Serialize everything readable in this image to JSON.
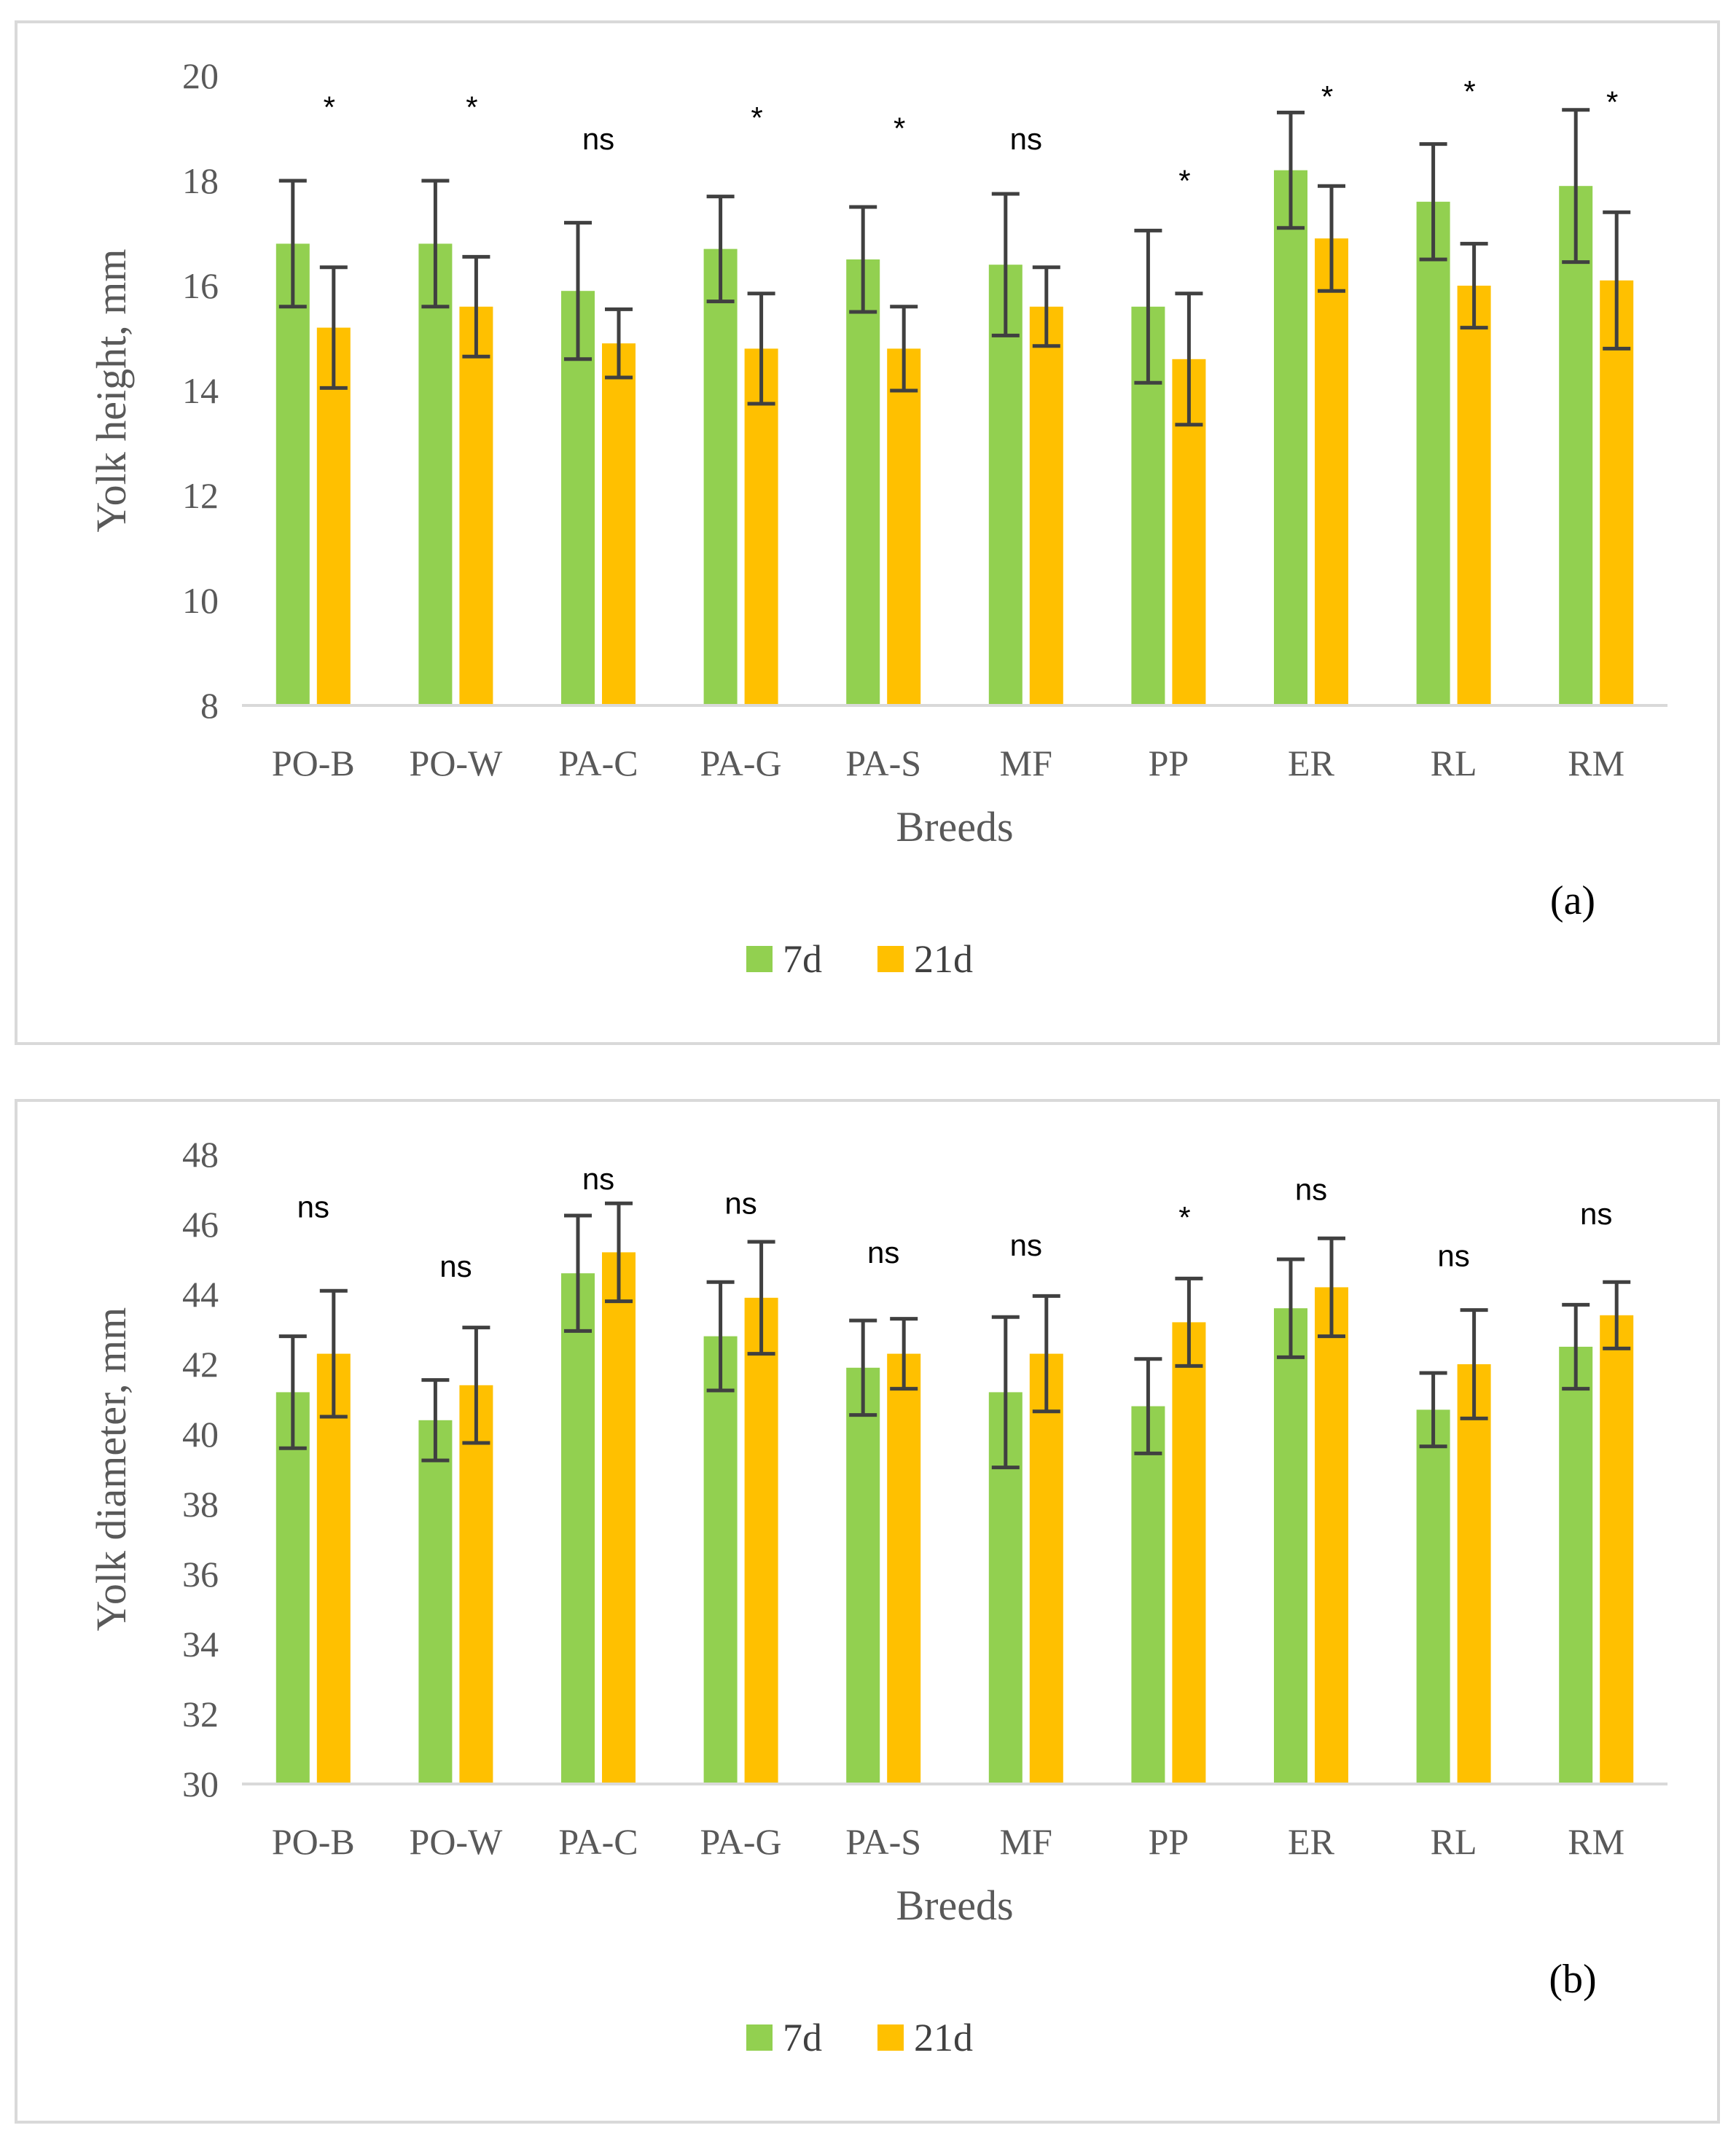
{
  "chart_data": [
    {
      "type": "bar",
      "panel_label": "(a)",
      "xlabel": "Breeds",
      "ylabel": "Yolk height, mm",
      "ylim": [
        8,
        20
      ],
      "yticks": [
        8,
        10,
        12,
        14,
        16,
        18,
        20
      ],
      "categories": [
        "PO-B",
        "PO-W",
        "PA-C",
        "PA-G",
        "PA-S",
        "MF",
        "PP",
        "ER",
        "RL",
        "RM"
      ],
      "series": [
        {
          "name": "7d",
          "color": "#92d050",
          "values": [
            16.8,
            16.8,
            15.9,
            16.7,
            16.5,
            16.4,
            15.6,
            18.2,
            17.6,
            17.9
          ],
          "errors": [
            1.2,
            1.2,
            1.3,
            1.0,
            1.0,
            1.35,
            1.45,
            1.1,
            1.1,
            1.45
          ]
        },
        {
          "name": "21d",
          "color": "#ffc000",
          "values": [
            15.2,
            15.6,
            14.9,
            14.8,
            14.8,
            15.6,
            14.6,
            16.9,
            16.0,
            16.1
          ],
          "errors": [
            1.15,
            0.95,
            0.65,
            1.05,
            0.8,
            0.75,
            1.25,
            1.0,
            0.8,
            1.3
          ]
        }
      ],
      "annotations": [
        "*",
        "*",
        "ns",
        "*",
        "*",
        "ns",
        "*",
        "*",
        "*",
        "*"
      ],
      "annotation_values": [
        19.2,
        19.2,
        18.6,
        19.0,
        18.8,
        18.6,
        17.8,
        19.4,
        19.5,
        19.3
      ]
    },
    {
      "type": "bar",
      "panel_label": "(b)",
      "xlabel": "Breeds",
      "ylabel": "Yolk diameter, mm",
      "ylim": [
        30,
        48
      ],
      "yticks": [
        30,
        32,
        34,
        36,
        38,
        40,
        42,
        44,
        46,
        48
      ],
      "categories": [
        "PO-B",
        "PO-W",
        "PA-C",
        "PA-G",
        "PA-S",
        "MF",
        "PP",
        "ER",
        "RL",
        "RM"
      ],
      "series": [
        {
          "name": "7d",
          "color": "#92d050",
          "values": [
            41.2,
            40.4,
            44.6,
            42.8,
            41.9,
            41.2,
            40.8,
            43.6,
            40.7,
            42.5
          ],
          "errors": [
            1.6,
            1.15,
            1.65,
            1.55,
            1.35,
            2.15,
            1.35,
            1.4,
            1.05,
            1.2
          ]
        },
        {
          "name": "21d",
          "color": "#ffc000",
          "values": [
            42.3,
            41.4,
            45.2,
            43.9,
            42.3,
            42.3,
            43.2,
            44.2,
            42.0,
            43.4
          ],
          "errors": [
            1.8,
            1.65,
            1.4,
            1.6,
            1.0,
            1.65,
            1.25,
            1.4,
            1.55,
            0.95
          ]
        }
      ],
      "annotations": [
        "ns",
        "ns",
        "ns",
        "ns",
        "ns",
        "ns",
        "*",
        "ns",
        "ns",
        "ns"
      ],
      "annotation_values": [
        46.2,
        44.5,
        47.0,
        46.3,
        44.9,
        45.1,
        45.9,
        46.7,
        44.8,
        46.0
      ]
    }
  ]
}
